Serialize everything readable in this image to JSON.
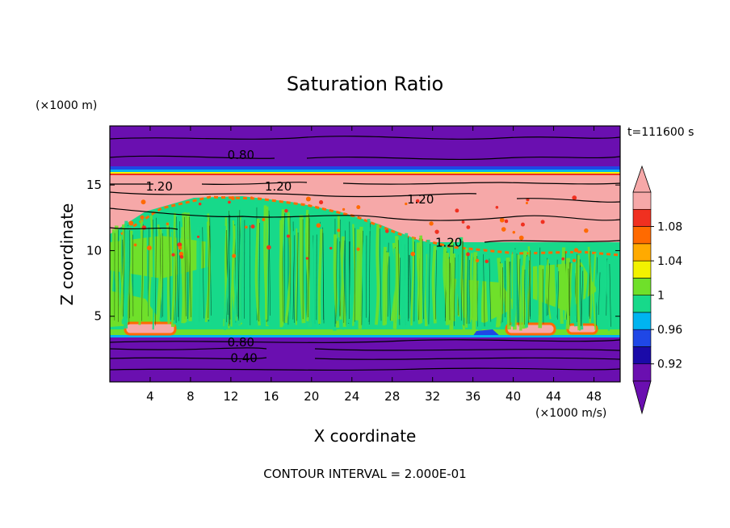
{
  "chart_data": {
    "type": "heatmap",
    "title": "Saturation Ratio",
    "xlabel": "X coordinate",
    "ylabel": "Z coordinate",
    "x_unit": "(×1000 m/s)",
    "y_unit": "(×1000 m)",
    "time_label": "t=111600 s",
    "footer": "CONTOUR INTERVAL = 2.000E-01",
    "xlim": [
      0,
      50.6
    ],
    "ylim": [
      0,
      19.5
    ],
    "x_ticks": [
      4,
      8,
      12,
      16,
      20,
      24,
      28,
      32,
      36,
      40,
      44,
      48
    ],
    "y_ticks": [
      5,
      10,
      15
    ],
    "colorbar": {
      "levels": [
        0.9,
        0.92,
        0.94,
        0.96,
        0.98,
        1.0,
        1.02,
        1.04,
        1.06,
        1.08,
        1.1
      ],
      "colors": [
        "#6a0fb0",
        "#1a0aa8",
        "#1f47e6",
        "#00b4f0",
        "#17d98a",
        "#6fe02a",
        "#f2f200",
        "#ffaa00",
        "#ff6a00",
        "#f03020",
        "#f6a8a8"
      ],
      "tick_labels": [
        {
          "value": 0.92,
          "label": "0.92"
        },
        {
          "value": 0.96,
          "label": "0.96"
        },
        {
          "value": 1.0,
          "label": "1"
        },
        {
          "value": 1.04,
          "label": "1.04"
        },
        {
          "value": 1.08,
          "label": "1.08"
        }
      ]
    },
    "bands": [
      {
        "z_bottom": 16.6,
        "z_top": 19.5,
        "value": "below 0.92"
      },
      {
        "z_bottom": 15.8,
        "z_top": 16.6,
        "value": "0.92–1.10 transition"
      },
      {
        "z_bottom": 11.5,
        "z_top": 15.8,
        "value": "above 1.10"
      },
      {
        "z_bottom": 3.5,
        "z_top": 11.5,
        "value": "0.98–1.02"
      },
      {
        "z_bottom": 0,
        "z_top": 3.5,
        "value": "below 0.92"
      }
    ],
    "contour_labels": [
      {
        "x": 13.0,
        "z": 17.3,
        "text": "0.80"
      },
      {
        "x": 4.9,
        "z": 14.9,
        "text": "1.20"
      },
      {
        "x": 16.7,
        "z": 14.9,
        "text": "1.20"
      },
      {
        "x": 30.8,
        "z": 13.9,
        "text": "1.20"
      },
      {
        "x": 33.6,
        "z": 10.6,
        "text": "1.20"
      },
      {
        "x": 13.0,
        "z": 3.0,
        "text": "0.80"
      },
      {
        "x": 13.3,
        "z": 1.8,
        "text": "0.40"
      }
    ]
  }
}
